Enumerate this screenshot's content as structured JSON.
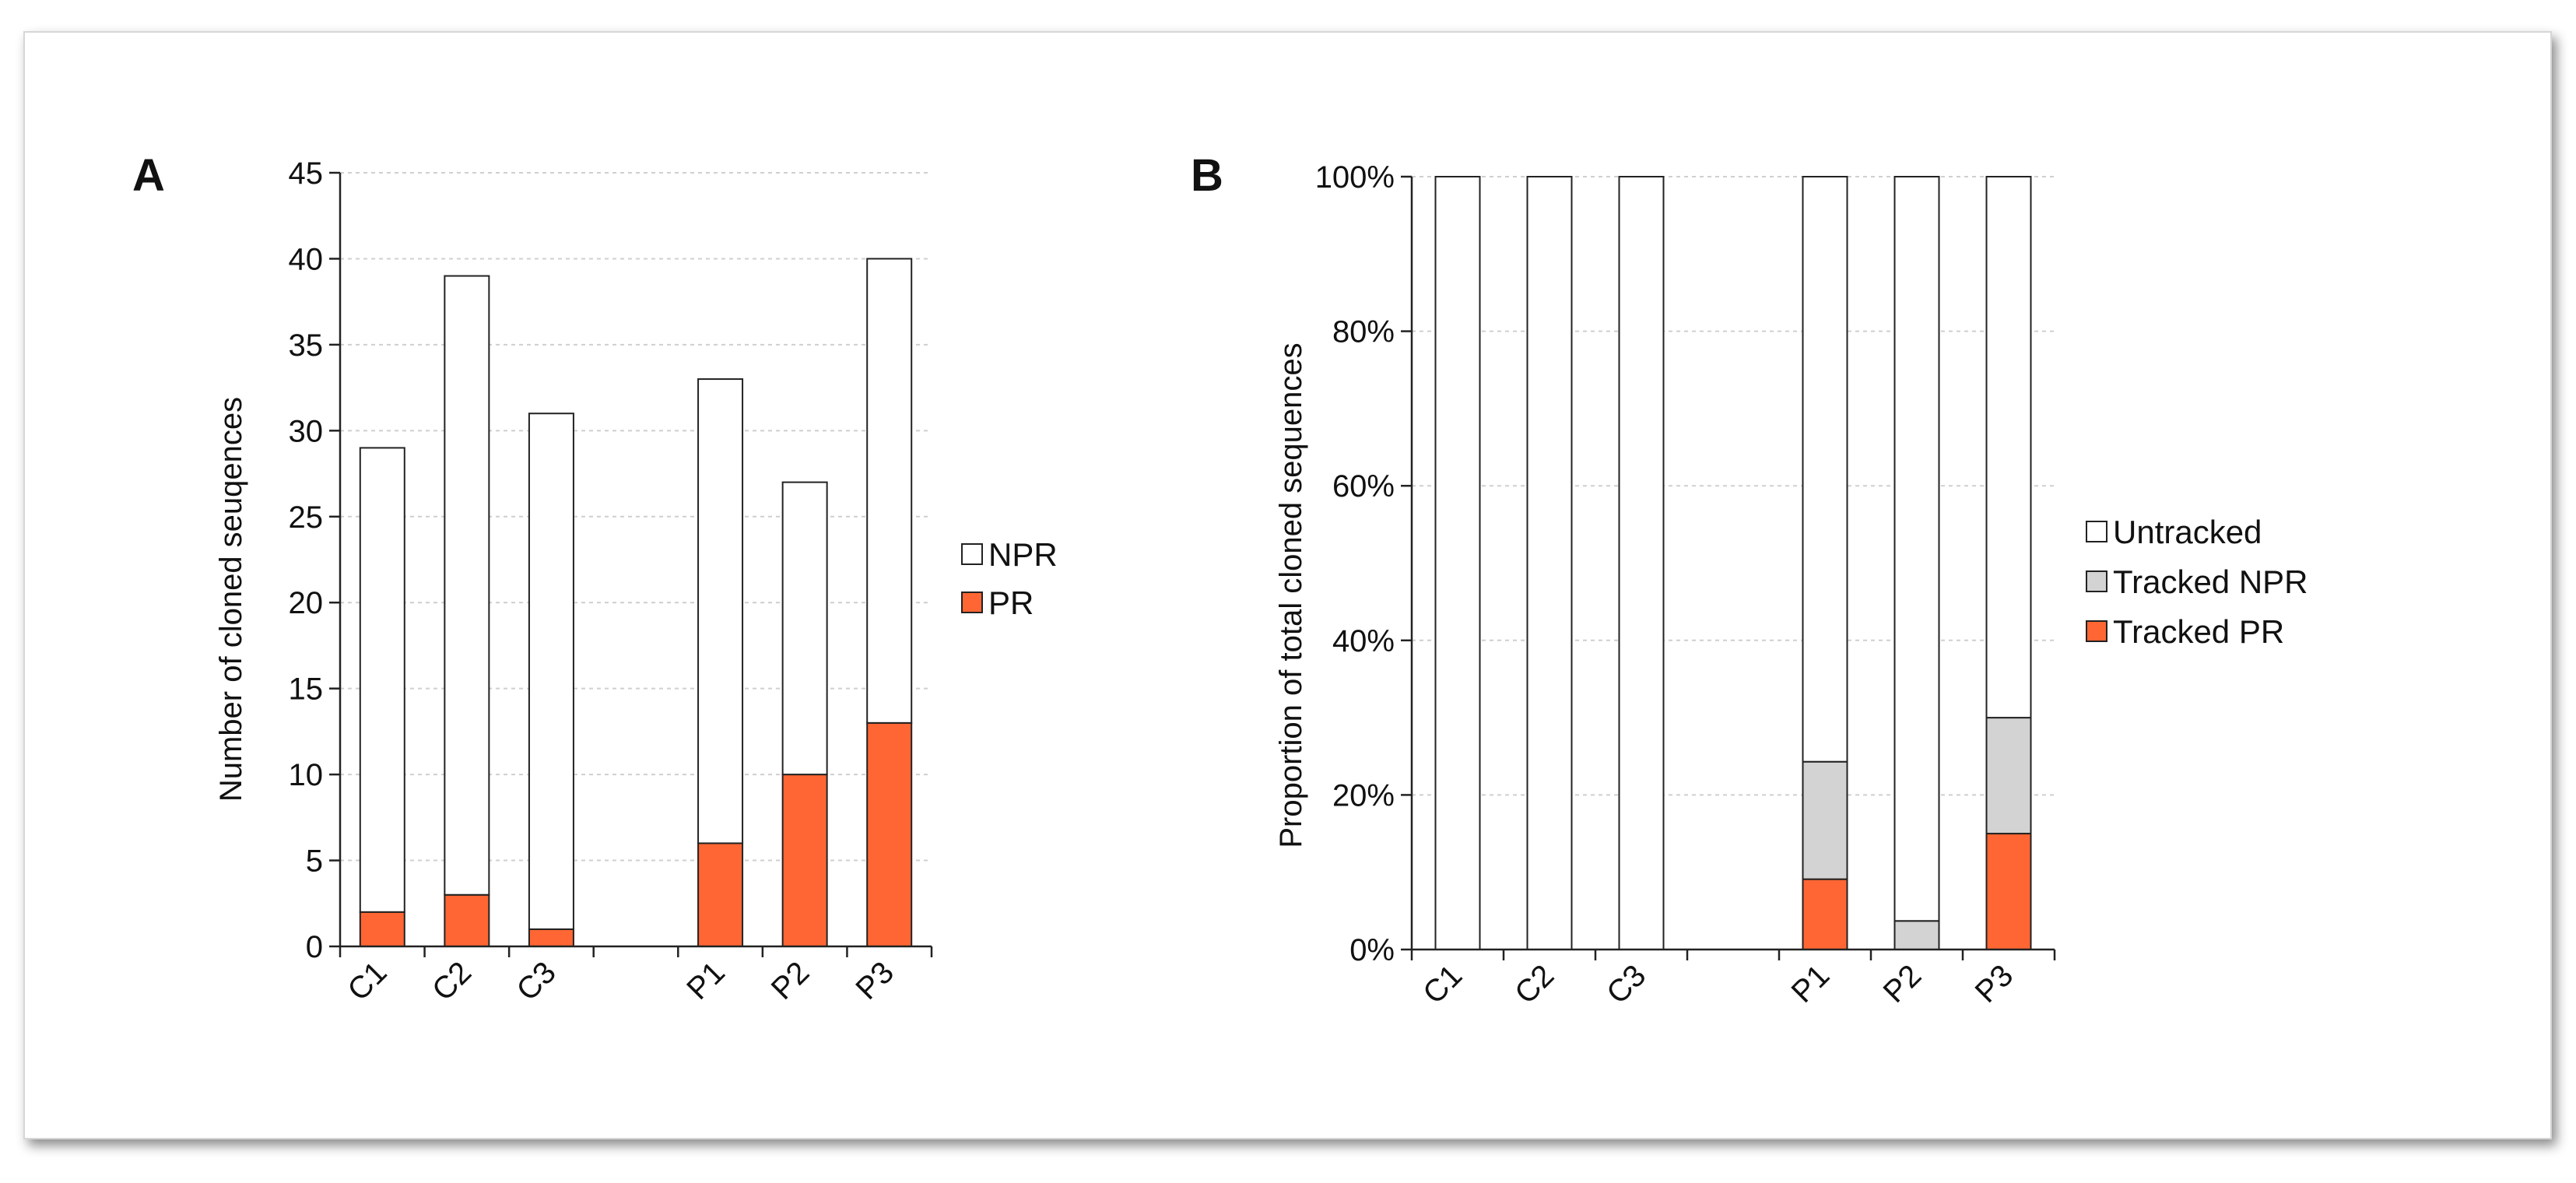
{
  "colors": {
    "pr": "#ff6633",
    "npr": "#ffffff",
    "tracked_npr": "#d3d3d3",
    "untracked": "#ffffff",
    "stroke": "#222222",
    "grid": "#cfcfcf"
  },
  "chart_data": [
    {
      "panel": "A",
      "type": "bar",
      "stacked": true,
      "categories": [
        "C1",
        "C2",
        "C3",
        "",
        "P1",
        "P2",
        "P3"
      ],
      "series": [
        {
          "name": "PR",
          "values": [
            2,
            3,
            1,
            null,
            6,
            10,
            13
          ]
        },
        {
          "name": "NPR",
          "values": [
            27,
            36,
            30,
            null,
            27,
            17,
            27
          ]
        }
      ],
      "totals": [
        29,
        39,
        31,
        null,
        33,
        27,
        40
      ],
      "ylabel": "Number of cloned seuqences",
      "xlabel": "",
      "ylim": [
        0,
        45
      ],
      "yticks": [
        0,
        5,
        10,
        15,
        20,
        25,
        30,
        35,
        40,
        45
      ],
      "ytick_labels": [
        "0",
        "5",
        "10",
        "15",
        "20",
        "25",
        "30",
        "35",
        "40",
        "45"
      ],
      "grid": true,
      "legend": [
        "NPR",
        "PR"
      ],
      "legend_position": "right"
    },
    {
      "panel": "B",
      "type": "bar",
      "stacked": true,
      "percent": true,
      "categories": [
        "C1",
        "C2",
        "C3",
        "",
        "P1",
        "P2",
        "P3"
      ],
      "series": [
        {
          "name": "Tracked PR",
          "values": [
            0,
            0,
            0,
            null,
            9.1,
            0,
            15
          ]
        },
        {
          "name": "Tracked NPR",
          "values": [
            0,
            0,
            0,
            null,
            15.2,
            3.7,
            15
          ]
        },
        {
          "name": "Untracked",
          "values": [
            100,
            100,
            100,
            null,
            75.7,
            96.3,
            70
          ]
        }
      ],
      "ylabel": "Proportion of total cloned sequences",
      "xlabel": "",
      "ylim": [
        0,
        100
      ],
      "yticks": [
        0,
        20,
        40,
        60,
        80,
        100
      ],
      "ytick_labels": [
        "0%",
        "20%",
        "40%",
        "60%",
        "80%",
        "100%"
      ],
      "grid": true,
      "legend": [
        "Untracked",
        "Tracked NPR",
        "Tracked PR"
      ],
      "legend_position": "right"
    }
  ]
}
